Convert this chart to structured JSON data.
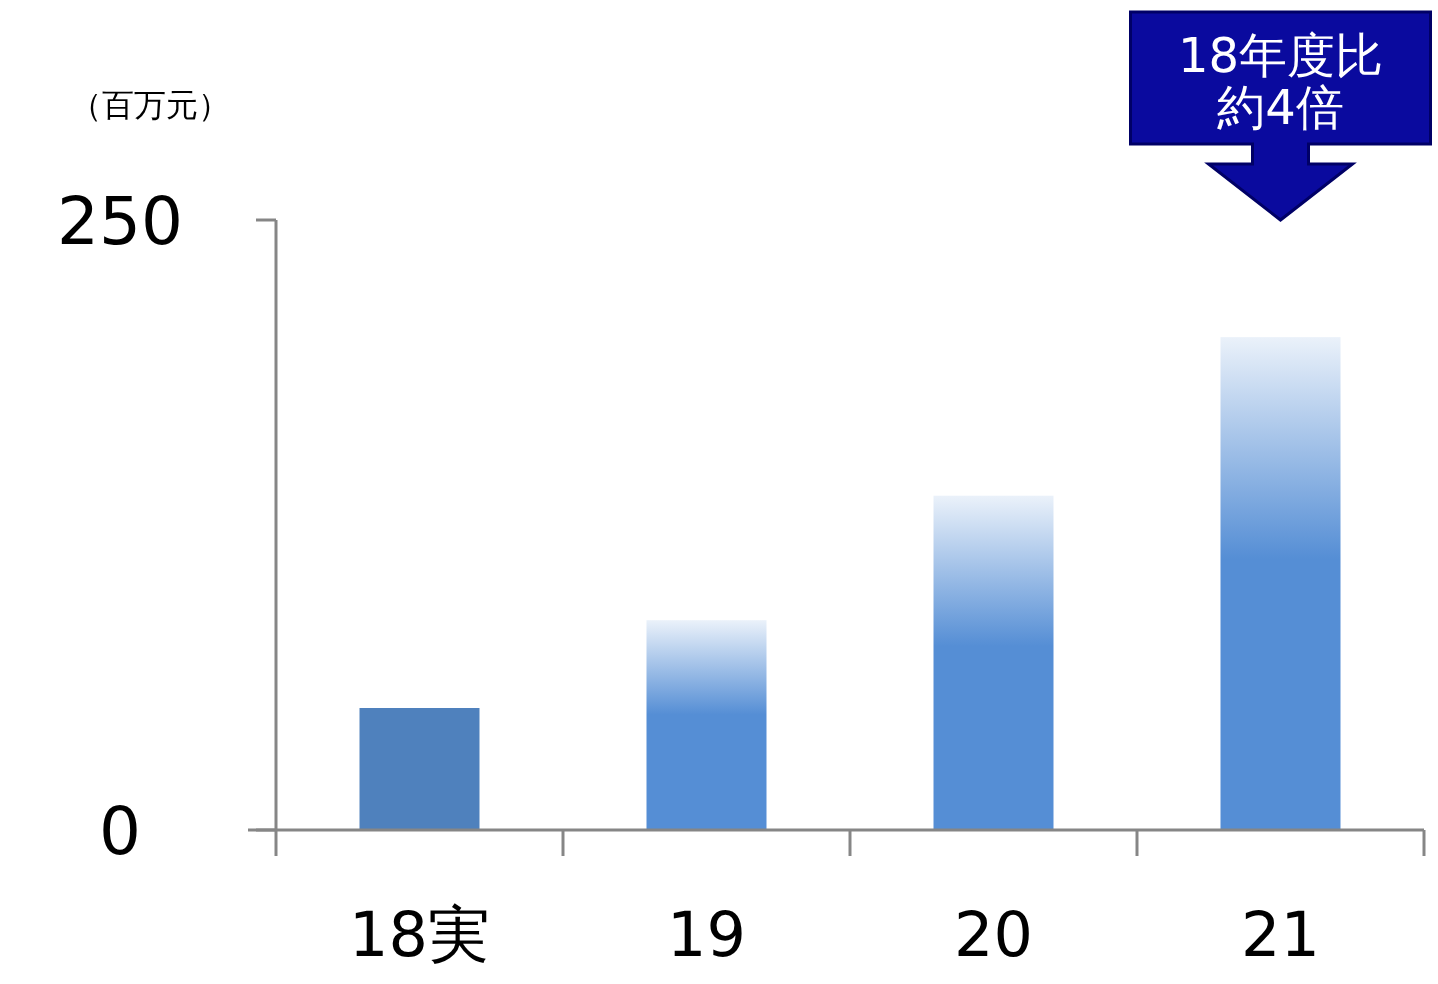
{
  "chart_data": {
    "type": "bar",
    "ylabel": "（百万元）",
    "categories": [
      "18実",
      "19",
      "20",
      "21"
    ],
    "values": [
      50,
      86,
      137,
      202
    ],
    "colors": [
      "#4f81bd",
      "#558ed5",
      "#558ed5",
      "#558ed5"
    ],
    "ylim": [
      0,
      250
    ],
    "yticks": [
      0,
      250
    ],
    "grid": false,
    "annotations": [
      "18年度比約4倍"
    ]
  }
}
